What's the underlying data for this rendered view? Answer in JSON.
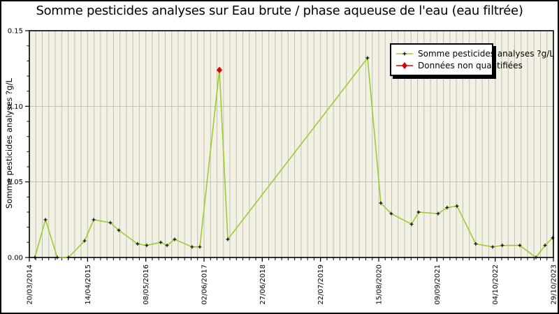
{
  "chart_data": {
    "type": "line",
    "title": "Somme pesticides analyses sur Eau brute / phase aqueuse de l'eau (eau filtrée)",
    "xlabel": "",
    "ylabel": "Somme pesticides analyses ?g/L",
    "ylim": [
      0,
      0.15
    ],
    "yticks": [
      0,
      0.05,
      0.1,
      0.15
    ],
    "ytick_labels": [
      "0.00",
      "0.05",
      "0.10",
      "0.15"
    ],
    "ytick_minor_step": 0.01,
    "xtick_labels": [
      "20/03/2014",
      "14/04/2015",
      "08/05/2016",
      "02/06/2017",
      "27/06/2018",
      "22/07/2019",
      "15/08/2020",
      "09/09/2021",
      "04/10/2022",
      "29/10/2023"
    ],
    "xtick_dates": [
      "2014-03-20",
      "2015-04-14",
      "2016-05-08",
      "2017-06-02",
      "2018-06-27",
      "2019-07-22",
      "2020-08-15",
      "2021-09-09",
      "2022-10-04",
      "2023-10-29"
    ],
    "x_range_dates": [
      "2014-03-20",
      "2023-10-29"
    ],
    "grid": {
      "vertical_minor": true,
      "horizontal_major": true,
      "vertical_minor_divisions": 81
    },
    "legend": {
      "position": "upper right",
      "entries": [
        {
          "label": "Somme pesticides analyses ?g/L",
          "line_color": "#9acd32",
          "marker": "black-plus",
          "marker_color": "#000000"
        },
        {
          "label": "Données non quantifiées",
          "line_color": "#dd0000",
          "marker": "red-diamond",
          "marker_color": "#dd0000"
        }
      ]
    },
    "colors": {
      "line": "#9acd32",
      "marker": "#000000",
      "unquantified": "#dd0000",
      "plot_bg": "#f2f1e3",
      "grid": "#c1c0b8",
      "frame": "#000000",
      "figure_bg": "#ffffff"
    },
    "series": [
      {
        "name": "Somme pesticides analyses ?g/L",
        "points": [
          {
            "date": "2014-04-26",
            "value": 0.0
          },
          {
            "date": "2014-07-06",
            "value": 0.025
          },
          {
            "date": "2014-09-23",
            "value": 0.0
          },
          {
            "date": "2014-12-07",
            "value": 0.0
          },
          {
            "date": "2015-03-25",
            "value": 0.011
          },
          {
            "date": "2015-05-25",
            "value": 0.025
          },
          {
            "date": "2015-09-14",
            "value": 0.023
          },
          {
            "date": "2015-11-09",
            "value": 0.018
          },
          {
            "date": "2016-03-14",
            "value": 0.009
          },
          {
            "date": "2016-05-14",
            "value": 0.008
          },
          {
            "date": "2016-08-16",
            "value": 0.01
          },
          {
            "date": "2016-09-27",
            "value": 0.008
          },
          {
            "date": "2016-11-17",
            "value": 0.012
          },
          {
            "date": "2017-03-14",
            "value": 0.007
          },
          {
            "date": "2017-05-05",
            "value": 0.007
          },
          {
            "date": "2017-09-13",
            "value": 0.124,
            "quantified": false
          },
          {
            "date": "2017-11-08",
            "value": 0.012
          },
          {
            "date": "2020-06-01",
            "value": 0.132
          },
          {
            "date": "2020-08-29",
            "value": 0.036
          },
          {
            "date": "2020-11-07",
            "value": 0.029
          },
          {
            "date": "2021-03-23",
            "value": 0.022
          },
          {
            "date": "2021-05-09",
            "value": 0.03
          },
          {
            "date": "2021-09-17",
            "value": 0.029
          },
          {
            "date": "2021-11-16",
            "value": 0.033
          },
          {
            "date": "2022-01-21",
            "value": 0.034
          },
          {
            "date": "2022-05-27",
            "value": 0.009
          },
          {
            "date": "2022-09-17",
            "value": 0.007
          },
          {
            "date": "2022-11-21",
            "value": 0.008
          },
          {
            "date": "2023-03-18",
            "value": 0.008
          },
          {
            "date": "2023-07-04",
            "value": 0.0
          },
          {
            "date": "2023-09-03",
            "value": 0.008
          },
          {
            "date": "2023-10-24",
            "value": 0.013
          }
        ]
      }
    ]
  }
}
